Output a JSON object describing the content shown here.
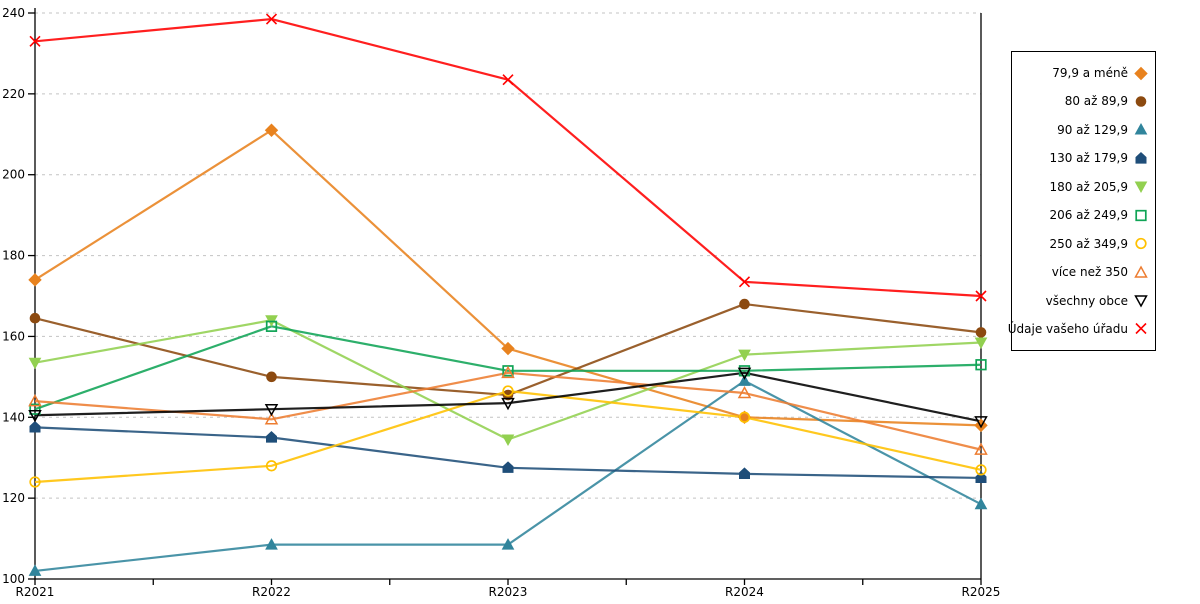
{
  "chart_data": {
    "type": "line",
    "title": "",
    "xlabel": "",
    "ylabel": "",
    "x_labels": [
      "R2021",
      "R2022",
      "R2023",
      "R2024",
      "R2025"
    ],
    "ylim": [
      100,
      240
    ],
    "ytick_step": 20,
    "ytick_labels": [
      "100",
      "120",
      "140",
      "160",
      "180",
      "200",
      "220",
      "240"
    ],
    "grid": "horizontal-dashed",
    "grid_color": "#C3C3C3",
    "axis_color": "#000000",
    "legend_position": "right-box",
    "series": [
      {
        "name": "79,9 a méně",
        "color": "#E8821E",
        "marker": "diamond",
        "filled": true,
        "values": [
          174,
          211,
          157,
          140,
          138
        ]
      },
      {
        "name": "80 až 89,9",
        "color": "#8C4A10",
        "marker": "circle",
        "filled": true,
        "values": [
          164.5,
          150,
          145.5,
          168,
          161
        ]
      },
      {
        "name": "90 až 129,9",
        "color": "#31859C",
        "marker": "triangle-up",
        "filled": true,
        "values": [
          102,
          108.5,
          108.5,
          149,
          118.5
        ]
      },
      {
        "name": "130 až 179,9",
        "color": "#1F4E79",
        "marker": "pentagon",
        "filled": true,
        "values": [
          137.5,
          135,
          127.5,
          126,
          125
        ]
      },
      {
        "name": "180 až 205,9",
        "color": "#92D050",
        "marker": "triangle-down",
        "filled": true,
        "values": [
          153.5,
          164,
          134.5,
          155.5,
          158.5
        ]
      },
      {
        "name": "206 až 249,9",
        "color": "#10A456",
        "marker": "square",
        "filled": false,
        "values": [
          142,
          162.5,
          151.5,
          151.5,
          153
        ]
      },
      {
        "name": "250 až 349,9",
        "color": "#FFC000",
        "marker": "circle",
        "filled": false,
        "values": [
          124,
          128,
          146.5,
          140,
          127
        ]
      },
      {
        "name": "více než 350",
        "color": "#ED7D31",
        "marker": "triangle-up",
        "filled": false,
        "values": [
          144,
          139.5,
          151,
          146,
          132
        ]
      },
      {
        "name": "všechny obce",
        "color": "#000000",
        "marker": "triangle-down",
        "filled": false,
        "values": [
          140.5,
          142,
          143.5,
          151,
          139
        ]
      },
      {
        "name": "Údaje vašeho úřadu",
        "color": "#FF0000",
        "marker": "x",
        "filled": false,
        "values": [
          233,
          238.5,
          223.5,
          173.5,
          170
        ]
      }
    ]
  }
}
